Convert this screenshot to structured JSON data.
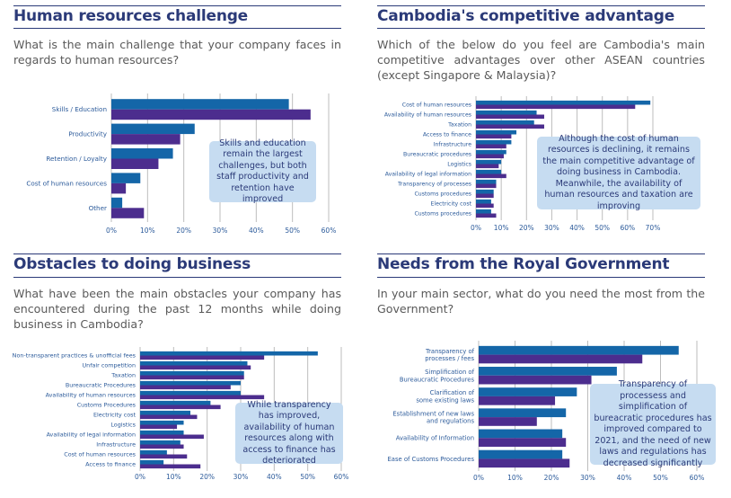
{
  "colors": {
    "series_a": "#1466a8",
    "series_b": "#4c2d8e",
    "title": "#2b3a78",
    "note_bg": "#c6dcf1",
    "grid": "#bdbdbd"
  },
  "panels": [
    {
      "title": "Human resources challenge",
      "question": "What is the main challenge that your company faces in regards to human resources?",
      "note": "Skills and education remain the largest challenges, but both staff productivity and retention have improved"
    },
    {
      "title": "Cambodia's competitive advantage",
      "question": "Which of the below do you feel are Cambodia's main competitive advantages over other ASEAN countries (except Singapore & Malaysia)?",
      "note": "Although the cost of human resources is declining, it remains the main competitive advantage of doing business in Cambodia. Meanwhile, the availability of human resources and taxation are improving"
    },
    {
      "title": "Obstacles to doing business",
      "question": "What have been the main obstacles your company has encountered during the past 12 months while doing business in Cambodia?",
      "note": "While transparency has improved, availability of human resources along with access to finance has deteriorated"
    },
    {
      "title": "Needs from the Royal Government",
      "question": "In your main sector, what do you need the most from the Government?",
      "note": "Transparency of processess and simplification of bureacratic procedures has improved compared to 2021, and the need of new laws and regulations has decreased significantly"
    }
  ],
  "chart_data": [
    {
      "type": "bar",
      "orientation": "horizontal",
      "grid": true,
      "xlim": [
        0,
        60
      ],
      "ticks": [
        "0%",
        "10%",
        "20%",
        "30%",
        "40%",
        "50%",
        "60%"
      ],
      "categories": [
        "Skills / Education",
        "Productivity",
        "Retention / Loyalty",
        "Cost of human resources",
        "Other"
      ],
      "series": [
        {
          "values": [
            49,
            23,
            17,
            8,
            3
          ]
        },
        {
          "values": [
            55,
            19,
            13,
            4,
            9
          ]
        }
      ]
    },
    {
      "type": "bar",
      "orientation": "horizontal",
      "grid": true,
      "xlim": [
        0,
        70
      ],
      "ticks": [
        "0%",
        "10%",
        "20%",
        "30%",
        "40%",
        "50%",
        "60%",
        "70%"
      ],
      "categories": [
        "Cost of human resources",
        "Availability of human resources",
        "Taxation",
        "Access to finance",
        "Infrastructure",
        "Bureaucratic procedures",
        "Logistics",
        "Availability of legal information",
        "Transparency of processes",
        "Customs procedures",
        "Electricity cost",
        "Customs procedures"
      ],
      "series": [
        {
          "values": [
            69,
            24,
            23,
            16,
            14,
            12,
            10,
            10,
            8,
            7,
            6,
            6
          ]
        },
        {
          "values": [
            63,
            27,
            27,
            14,
            12,
            11,
            9,
            12,
            8,
            7,
            7,
            8
          ]
        }
      ]
    },
    {
      "type": "bar",
      "orientation": "horizontal",
      "grid": true,
      "xlim": [
        0,
        60
      ],
      "ticks": [
        "0%",
        "10%",
        "20%",
        "30%",
        "40%",
        "50%",
        "60%"
      ],
      "categories": [
        "Non-transparent practices & unofficial fees",
        "Unfair competition",
        "Taxation",
        "Bureaucratic Procedures",
        "Availability of human resources",
        "Customs Procedures",
        "Electricity cost",
        "Logistics",
        "Availability of legal information",
        "Infrastructure",
        "Cost of human resources",
        "Access to finance"
      ],
      "series": [
        {
          "values": [
            53,
            32,
            31,
            30,
            30,
            21,
            15,
            13,
            13,
            12,
            8,
            7
          ]
        },
        {
          "values": [
            37,
            33,
            31,
            27,
            37,
            24,
            17,
            11,
            19,
            13,
            14,
            18
          ]
        }
      ]
    },
    {
      "type": "bar",
      "orientation": "horizontal",
      "grid": true,
      "xlim": [
        0,
        60
      ],
      "ticks": [
        "0%",
        "10%",
        "20%",
        "30%",
        "40%",
        "50%",
        "60%"
      ],
      "categories": [
        [
          "Transparency of",
          "processes / fees"
        ],
        [
          "Simplification of",
          "Bureaucratic Procedures"
        ],
        [
          "Clarification of",
          "some existing laws"
        ],
        [
          "Establishment of new laws",
          "and regulations"
        ],
        [
          "Availability of Information"
        ],
        [
          "Ease of Customs Procedures"
        ]
      ],
      "series": [
        {
          "values": [
            55,
            38,
            27,
            24,
            23,
            23
          ]
        },
        {
          "values": [
            45,
            31,
            21,
            16,
            24,
            25
          ]
        }
      ]
    }
  ]
}
